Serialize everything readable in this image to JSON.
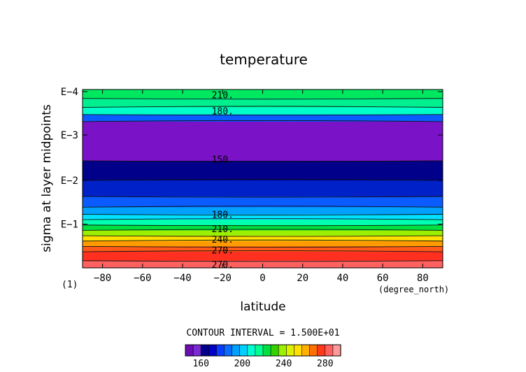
{
  "chart_data": {
    "type": "heatmap",
    "title": "temperature",
    "xlabel": "latitude",
    "ylabel": "sigma at layer midpoints",
    "x_unit_label": "(degree_north)",
    "corner_label": "(1)",
    "xlim": [
      -90,
      90
    ],
    "x_ticks": [
      -80,
      -60,
      -40,
      -20,
      0,
      20,
      40,
      60,
      80
    ],
    "y_tick_labels": [
      "E-4",
      "E-3",
      "E-2",
      "E-1"
    ],
    "contour_interval_text": "CONTOUR INTERVAL = 1.500E+01",
    "colorbar_ticks": [
      160,
      200,
      240,
      280
    ],
    "colorbar_colors": [
      "#6a0db3",
      "#7a2bd6",
      "#00008b",
      "#0000c8",
      "#0a3cff",
      "#0a6cff",
      "#00a0ff",
      "#00d0ff",
      "#00ffd0",
      "#00ff90",
      "#00e040",
      "#38d000",
      "#9af000",
      "#ddf000",
      "#ffe000",
      "#ffb000",
      "#ff7000",
      "#ff3a1a",
      "#ff6060",
      "#ff9a9a"
    ],
    "bands": [
      {
        "from": 0.0,
        "to": 0.05,
        "color": "#00e860"
      },
      {
        "from": 0.05,
        "to": 0.1,
        "color": "#00f090"
      },
      {
        "from": 0.1,
        "to": 0.14,
        "color": "#00ffc8"
      },
      {
        "from": 0.14,
        "to": 0.18,
        "color": "#0a5cff"
      },
      {
        "from": 0.18,
        "to": 0.4,
        "color": "#7a12c8"
      },
      {
        "from": 0.4,
        "to": 0.51,
        "color": "#00008b"
      },
      {
        "from": 0.51,
        "to": 0.6,
        "color": "#0020c8"
      },
      {
        "from": 0.6,
        "to": 0.66,
        "color": "#0a5cff"
      },
      {
        "from": 0.66,
        "to": 0.7,
        "color": "#00a0ff"
      },
      {
        "from": 0.7,
        "to": 0.73,
        "color": "#00e0ff"
      },
      {
        "from": 0.73,
        "to": 0.76,
        "color": "#00ffb0"
      },
      {
        "from": 0.76,
        "to": 0.79,
        "color": "#00e040"
      },
      {
        "from": 0.79,
        "to": 0.82,
        "color": "#9af000"
      },
      {
        "from": 0.82,
        "to": 0.85,
        "color": "#ffe000"
      },
      {
        "from": 0.85,
        "to": 0.88,
        "color": "#ff9a00"
      },
      {
        "from": 0.88,
        "to": 0.91,
        "color": "#ff5a1a"
      },
      {
        "from": 0.91,
        "to": 0.96,
        "color": "#ff3020"
      },
      {
        "from": 0.96,
        "to": 1.0,
        "color": "#ff6060"
      }
    ],
    "contour_labels": [
      "210.",
      "180.",
      "150.",
      "180.",
      "210.",
      "240.",
      "270.",
      "270."
    ]
  }
}
